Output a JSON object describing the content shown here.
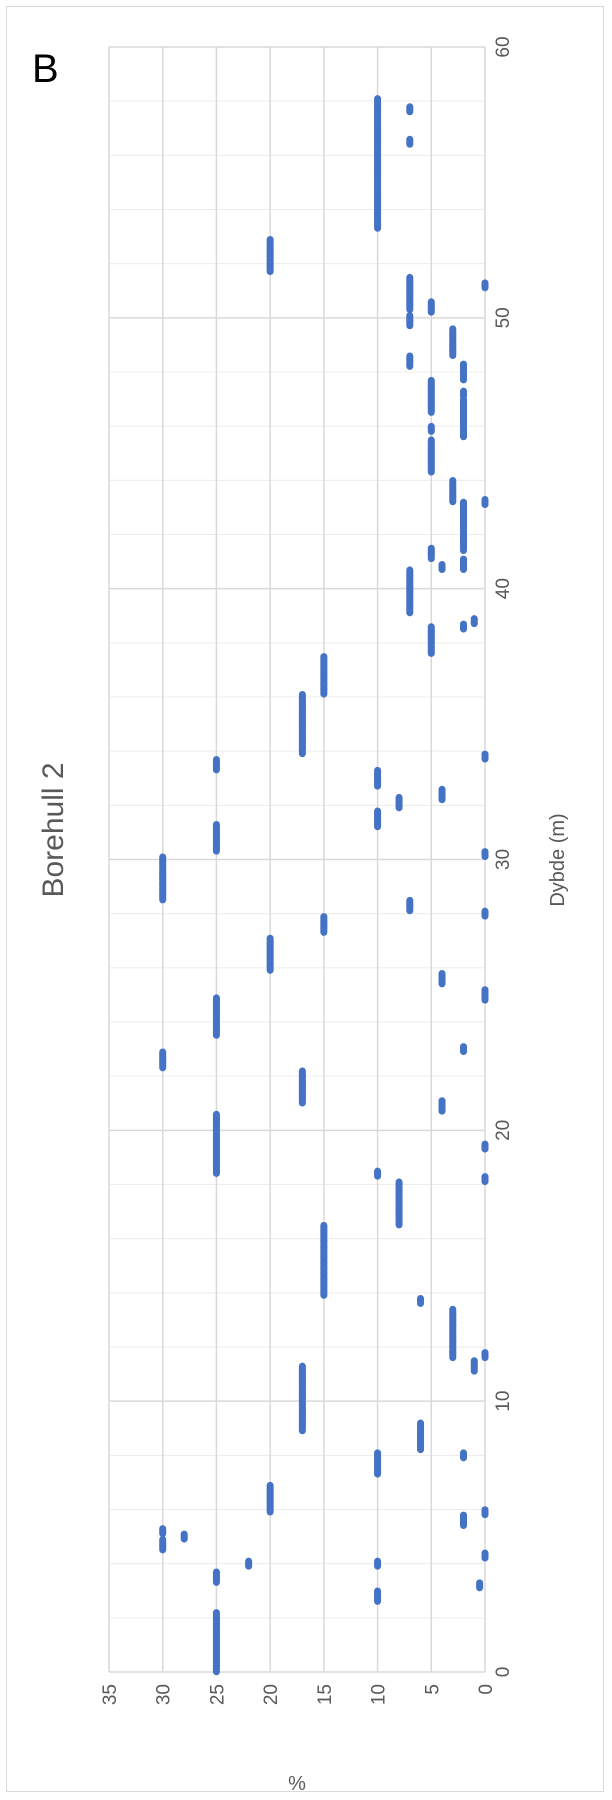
{
  "panel_label": "B",
  "chart_data": {
    "type": "scatter",
    "title": "Borehull 2",
    "xlabel": "Dybde (m)",
    "ylabel": "%",
    "xlim": [
      0,
      60
    ],
    "ylim": [
      0,
      35
    ],
    "x_ticks": [
      0,
      10,
      20,
      30,
      40,
      50,
      60
    ],
    "y_ticks": [
      0,
      5,
      10,
      15,
      20,
      25,
      30,
      35
    ],
    "x_minor_step": 2,
    "grid": true,
    "orientation": "rotated 90 degrees clockwise (depth axis vertical, % axis horizontal reversed)",
    "marker_color": "#4472C4",
    "series": [
      {
        "points": [
          [
            0.1,
            25
          ],
          [
            0.3,
            25
          ],
          [
            0.5,
            25
          ],
          [
            0.7,
            25
          ],
          [
            0.9,
            25
          ],
          [
            1.1,
            25
          ],
          [
            1.3,
            25
          ],
          [
            1.5,
            25
          ],
          [
            1.7,
            25
          ],
          [
            1.9,
            25
          ],
          [
            2.1,
            25
          ],
          [
            2.7,
            10
          ],
          [
            2.9,
            10
          ],
          [
            3.2,
            0.5
          ],
          [
            3.4,
            25
          ],
          [
            3.6,
            25
          ],
          [
            4.0,
            10
          ],
          [
            4.0,
            22
          ],
          [
            4.3,
            0
          ],
          [
            4.6,
            30
          ],
          [
            4.8,
            30
          ],
          [
            5.0,
            28
          ],
          [
            5.2,
            30
          ],
          [
            5.5,
            2
          ],
          [
            5.7,
            2
          ],
          [
            5.9,
            0
          ],
          [
            6.0,
            20
          ],
          [
            6.2,
            20
          ],
          [
            6.4,
            20
          ],
          [
            6.6,
            20
          ],
          [
            6.8,
            20
          ],
          [
            7.4,
            10
          ],
          [
            7.6,
            10
          ],
          [
            7.8,
            10
          ],
          [
            8.0,
            10
          ],
          [
            8.0,
            2
          ],
          [
            8.3,
            6
          ],
          [
            8.5,
            6
          ],
          [
            8.7,
            6
          ],
          [
            8.9,
            6
          ],
          [
            9.1,
            6
          ],
          [
            9.0,
            17
          ],
          [
            9.2,
            17
          ],
          [
            9.4,
            17
          ],
          [
            9.6,
            17
          ],
          [
            9.8,
            17
          ],
          [
            10.0,
            17
          ],
          [
            10.2,
            17
          ],
          [
            10.4,
            17
          ],
          [
            10.6,
            17
          ],
          [
            10.8,
            17
          ],
          [
            11.0,
            17
          ],
          [
            11.2,
            17
          ],
          [
            11.2,
            1
          ],
          [
            11.4,
            1
          ],
          [
            11.7,
            0
          ],
          [
            11.7,
            3
          ],
          [
            11.9,
            3
          ],
          [
            12.1,
            3
          ],
          [
            12.3,
            3
          ],
          [
            12.5,
            3
          ],
          [
            12.7,
            3
          ],
          [
            12.9,
            3
          ],
          [
            13.1,
            3
          ],
          [
            13.3,
            3
          ],
          [
            13.7,
            6
          ],
          [
            14.0,
            15
          ],
          [
            14.2,
            15
          ],
          [
            14.4,
            15
          ],
          [
            14.6,
            15
          ],
          [
            14.8,
            15
          ],
          [
            15.0,
            15
          ],
          [
            15.2,
            15
          ],
          [
            15.4,
            15
          ],
          [
            15.6,
            15
          ],
          [
            15.8,
            15
          ],
          [
            16.0,
            15
          ],
          [
            16.2,
            15
          ],
          [
            16.4,
            15
          ],
          [
            16.6,
            8
          ],
          [
            16.8,
            8
          ],
          [
            17.0,
            8
          ],
          [
            17.2,
            8
          ],
          [
            17.4,
            8
          ],
          [
            17.6,
            8
          ],
          [
            17.8,
            8
          ],
          [
            18.0,
            8
          ],
          [
            18.2,
            0
          ],
          [
            18.4,
            10
          ],
          [
            18.5,
            25
          ],
          [
            18.7,
            25
          ],
          [
            18.9,
            25
          ],
          [
            19.1,
            25
          ],
          [
            19.3,
            25
          ],
          [
            19.5,
            25
          ],
          [
            19.7,
            25
          ],
          [
            19.9,
            25
          ],
          [
            20.1,
            25
          ],
          [
            20.3,
            25
          ],
          [
            20.5,
            25
          ],
          [
            19.4,
            0
          ],
          [
            20.8,
            4
          ],
          [
            21.0,
            4
          ],
          [
            21.1,
            17
          ],
          [
            21.3,
            17
          ],
          [
            21.5,
            17
          ],
          [
            21.7,
            17
          ],
          [
            21.9,
            17
          ],
          [
            22.1,
            17
          ],
          [
            22.4,
            30
          ],
          [
            22.6,
            30
          ],
          [
            22.8,
            30
          ],
          [
            23.0,
            2
          ],
          [
            23.6,
            25
          ],
          [
            23.8,
            25
          ],
          [
            24.0,
            25
          ],
          [
            24.2,
            25
          ],
          [
            24.4,
            25
          ],
          [
            24.6,
            25
          ],
          [
            24.8,
            25
          ],
          [
            24.9,
            0
          ],
          [
            25.1,
            0
          ],
          [
            25.5,
            4
          ],
          [
            25.7,
            4
          ],
          [
            26.0,
            20
          ],
          [
            26.2,
            20
          ],
          [
            26.4,
            20
          ],
          [
            26.6,
            20
          ],
          [
            26.8,
            20
          ],
          [
            27.0,
            20
          ],
          [
            27.4,
            15
          ],
          [
            27.6,
            15
          ],
          [
            27.8,
            15
          ],
          [
            28.0,
            0
          ],
          [
            28.2,
            7
          ],
          [
            28.4,
            7
          ],
          [
            28.6,
            30
          ],
          [
            28.8,
            30
          ],
          [
            29.0,
            30
          ],
          [
            29.2,
            30
          ],
          [
            29.4,
            30
          ],
          [
            29.6,
            30
          ],
          [
            29.8,
            30
          ],
          [
            30.0,
            30
          ],
          [
            30.2,
            0
          ],
          [
            30.4,
            25
          ],
          [
            30.6,
            25
          ],
          [
            30.8,
            25
          ],
          [
            31.0,
            25
          ],
          [
            31.2,
            25
          ],
          [
            31.3,
            10
          ],
          [
            31.5,
            10
          ],
          [
            31.7,
            10
          ],
          [
            32.0,
            8
          ],
          [
            32.2,
            8
          ],
          [
            32.3,
            4
          ],
          [
            32.5,
            4
          ],
          [
            32.8,
            10
          ],
          [
            33.0,
            10
          ],
          [
            33.2,
            10
          ],
          [
            33.4,
            25
          ],
          [
            33.6,
            25
          ],
          [
            33.8,
            0
          ],
          [
            34.0,
            17
          ],
          [
            34.2,
            17
          ],
          [
            34.4,
            17
          ],
          [
            34.6,
            17
          ],
          [
            34.8,
            17
          ],
          [
            35.0,
            17
          ],
          [
            35.2,
            17
          ],
          [
            35.4,
            17
          ],
          [
            35.6,
            17
          ],
          [
            35.8,
            17
          ],
          [
            36.0,
            17
          ],
          [
            36.2,
            15
          ],
          [
            36.4,
            15
          ],
          [
            36.6,
            15
          ],
          [
            36.8,
            15
          ],
          [
            37.0,
            15
          ],
          [
            37.2,
            15
          ],
          [
            37.4,
            15
          ],
          [
            37.7,
            5
          ],
          [
            37.9,
            5
          ],
          [
            38.1,
            5
          ],
          [
            38.3,
            5
          ],
          [
            38.5,
            5
          ],
          [
            38.6,
            2
          ],
          [
            38.8,
            1
          ],
          [
            39.2,
            7
          ],
          [
            39.4,
            7
          ],
          [
            39.6,
            7
          ],
          [
            39.8,
            7
          ],
          [
            40.0,
            7
          ],
          [
            40.2,
            7
          ],
          [
            40.4,
            7
          ],
          [
            40.6,
            7
          ],
          [
            40.8,
            2
          ],
          [
            41.0,
            2
          ],
          [
            40.8,
            4
          ],
          [
            41.2,
            5
          ],
          [
            41.4,
            5
          ],
          [
            41.5,
            2
          ],
          [
            41.7,
            2
          ],
          [
            41.9,
            2
          ],
          [
            42.1,
            2
          ],
          [
            42.3,
            2
          ],
          [
            42.5,
            2
          ],
          [
            42.7,
            2
          ],
          [
            42.9,
            2
          ],
          [
            43.1,
            2
          ],
          [
            43.2,
            0
          ],
          [
            43.3,
            3
          ],
          [
            43.5,
            3
          ],
          [
            43.7,
            3
          ],
          [
            43.9,
            3
          ],
          [
            44.4,
            5
          ],
          [
            44.6,
            5
          ],
          [
            44.8,
            5
          ],
          [
            45.0,
            5
          ],
          [
            45.2,
            5
          ],
          [
            45.4,
            5
          ],
          [
            45.9,
            5
          ],
          [
            45.7,
            2
          ],
          [
            45.9,
            2
          ],
          [
            46.1,
            2
          ],
          [
            46.3,
            2
          ],
          [
            46.5,
            2
          ],
          [
            46.7,
            2
          ],
          [
            46.9,
            2
          ],
          [
            46.6,
            5
          ],
          [
            46.8,
            5
          ],
          [
            47.0,
            5
          ],
          [
            47.2,
            5
          ],
          [
            47.4,
            5
          ],
          [
            47.6,
            5
          ],
          [
            47.2,
            2
          ],
          [
            47.8,
            2
          ],
          [
            48.0,
            2
          ],
          [
            48.2,
            2
          ],
          [
            48.3,
            7
          ],
          [
            48.5,
            7
          ],
          [
            48.7,
            3
          ],
          [
            48.9,
            3
          ],
          [
            49.1,
            3
          ],
          [
            49.3,
            3
          ],
          [
            49.5,
            3
          ],
          [
            49.8,
            7
          ],
          [
            50.0,
            7
          ],
          [
            50.3,
            5
          ],
          [
            50.5,
            5
          ],
          [
            50.4,
            7
          ],
          [
            50.6,
            7
          ],
          [
            50.8,
            7
          ],
          [
            51.0,
            7
          ],
          [
            51.2,
            7
          ],
          [
            51.4,
            7
          ],
          [
            51.2,
            0
          ],
          [
            51.8,
            20
          ],
          [
            52.0,
            20
          ],
          [
            52.2,
            20
          ],
          [
            52.4,
            20
          ],
          [
            52.6,
            20
          ],
          [
            52.8,
            20
          ],
          [
            53.4,
            10
          ],
          [
            53.6,
            10
          ],
          [
            53.8,
            10
          ],
          [
            54.0,
            10
          ],
          [
            54.2,
            10
          ],
          [
            54.4,
            10
          ],
          [
            54.6,
            10
          ],
          [
            54.8,
            10
          ],
          [
            55.0,
            10
          ],
          [
            55.2,
            10
          ],
          [
            55.4,
            10
          ],
          [
            55.6,
            10
          ],
          [
            55.8,
            10
          ],
          [
            56.0,
            10
          ],
          [
            56.2,
            10
          ],
          [
            56.4,
            10
          ],
          [
            56.6,
            10
          ],
          [
            56.8,
            10
          ],
          [
            57.0,
            10
          ],
          [
            57.2,
            10
          ],
          [
            57.4,
            10
          ],
          [
            57.6,
            10
          ],
          [
            57.8,
            10
          ],
          [
            58.0,
            10
          ],
          [
            56.5,
            7
          ],
          [
            57.7,
            7
          ]
        ]
      }
    ]
  }
}
